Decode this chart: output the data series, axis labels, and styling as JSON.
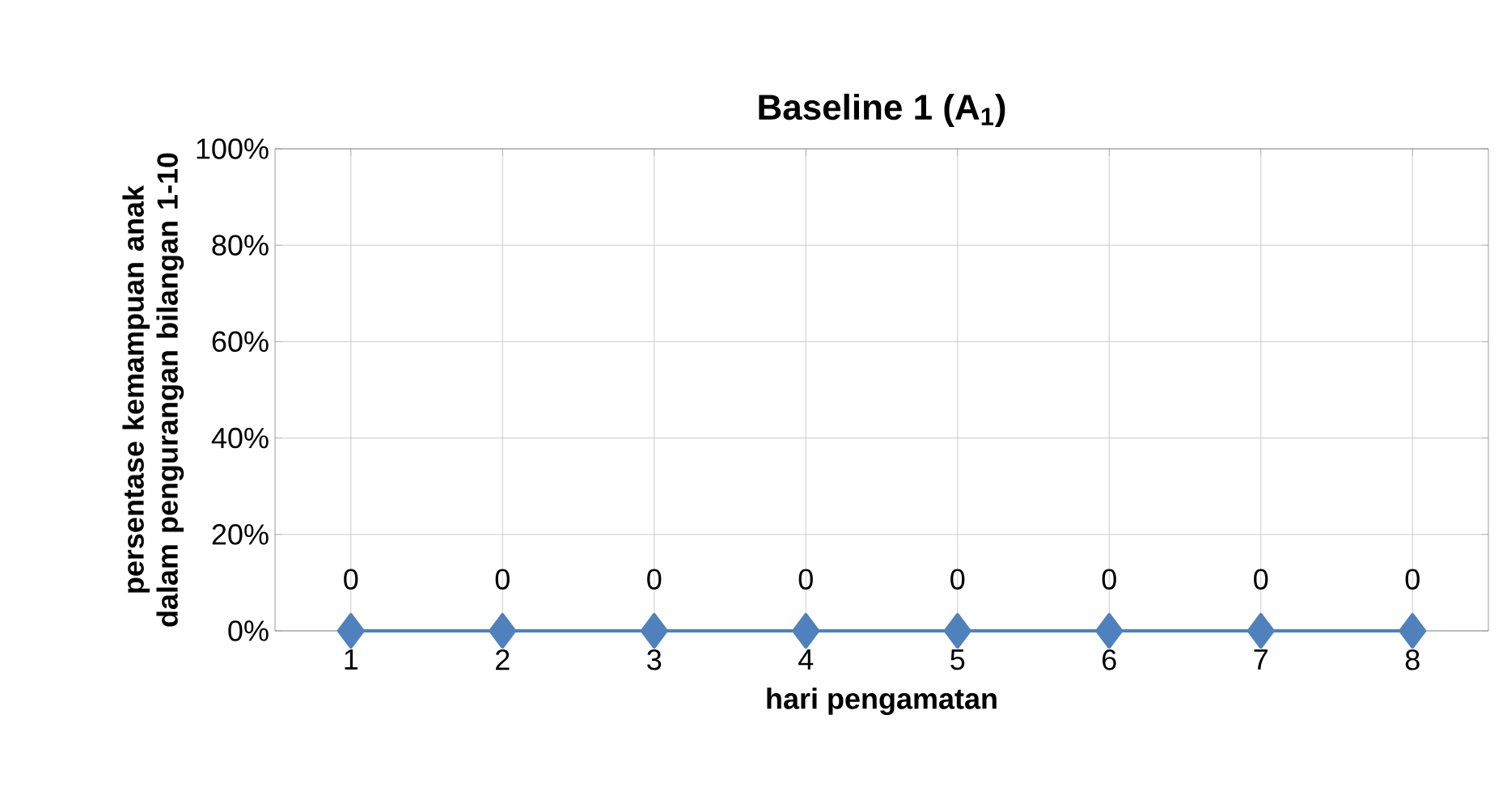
{
  "chart_data": {
    "type": "line",
    "title": "Baseline 1 (A$_{1}$)",
    "xlabel": "hari pengamatan",
    "ylabel": "persentase kemampuan anak dalam pengurangan bilangan 1-10",
    "categories": [
      "1",
      "2",
      "3",
      "4",
      "5",
      "6",
      "7",
      "8"
    ],
    "series": [
      {
        "color": "#4f81bd",
        "values": [
          0,
          0,
          0,
          0,
          0,
          0,
          0,
          0
        ]
      }
    ],
    "ylim": [
      0,
      100
    ],
    "yticks": [
      {
        "value": 0,
        "label": "0%"
      },
      {
        "value": 20,
        "label": "20%"
      },
      {
        "value": 40,
        "label": "40%"
      },
      {
        "value": 60,
        "label": "60%"
      },
      {
        "value": 80,
        "label": "80%"
      },
      {
        "value": 100,
        "label": "100%"
      }
    ],
    "grid": true,
    "marker": "diamond",
    "line_style": "solid",
    "data_labels": true
  }
}
